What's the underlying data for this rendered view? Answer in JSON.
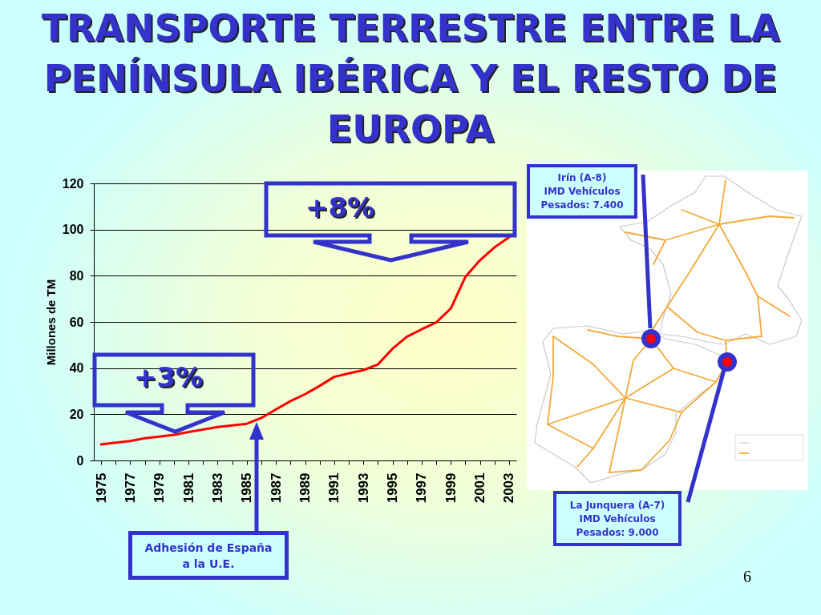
{
  "chart_data": {
    "type": "line",
    "title": "TRANSPORTE TERRESTRE ENTRE LA PENÍNSULA IBÉRICA Y EL RESTO DE EUROPA",
    "ylabel": "Millones de TM",
    "categories": [
      "1975",
      null,
      "1977",
      null,
      "1979",
      null,
      "1981",
      null,
      "1983",
      null,
      "1985",
      null,
      "1987",
      null,
      "1989",
      null,
      "1991",
      null,
      "1993",
      null,
      "1995",
      null,
      "1997",
      null,
      "1999",
      null,
      "2001",
      null,
      "2003"
    ],
    "series": [
      {
        "color": "#ff0000",
        "values": [
          6.9,
          7.7,
          8.4,
          9.6,
          10.3,
          11.1,
          12.3,
          13.4,
          14.5,
          15.2,
          15.9,
          18.4,
          22.1,
          25.7,
          28.7,
          32.3,
          36.2,
          37.7,
          39.1,
          41.6,
          48.4,
          53.6,
          56.8,
          59.8,
          65.8,
          79.5,
          86.7,
          92.3,
          96.7
        ]
      }
    ],
    "ylim": [
      0,
      120
    ],
    "yticks": [
      0,
      20,
      40,
      60,
      80,
      100,
      120
    ],
    "grid": "y",
    "annotations": [
      "+3%",
      "+8%",
      "Adhesión de España\na la U.E.",
      "Irín (A-8)\nIMD Vehículos\nPesados: 7.400",
      "La Junquera (A-7)\nIMD Vehículos\nPesados: 9.000",
      "6"
    ]
  }
}
